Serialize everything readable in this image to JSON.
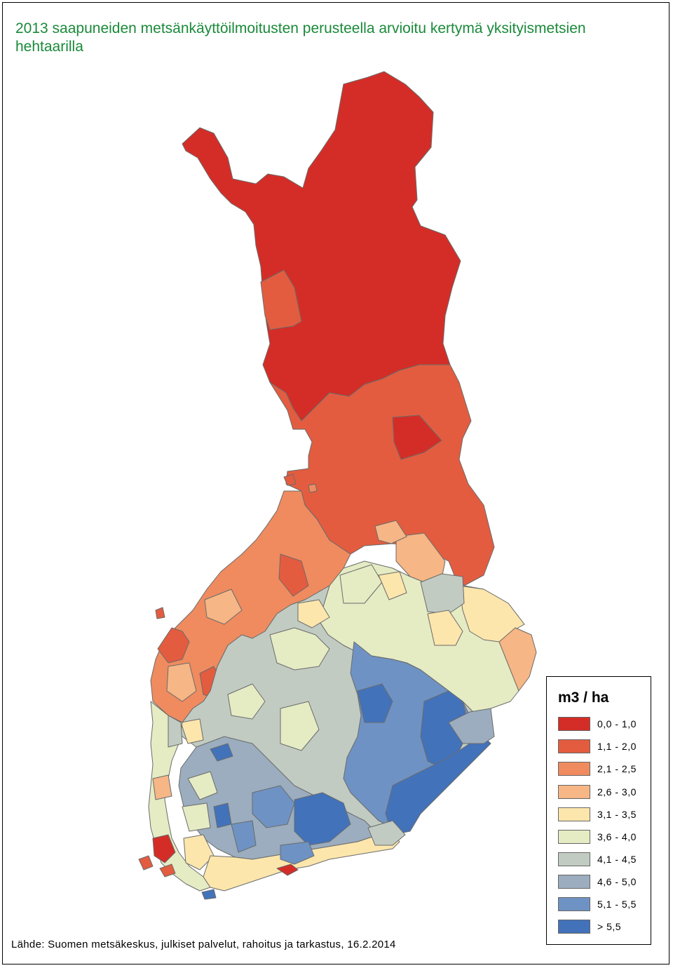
{
  "title": "2013 saapuneiden metsänkäyttöilmoitusten perusteella arvioitu kertymä yksityismetsien hehtaarilla",
  "legend": {
    "title": "m3 / ha",
    "items": [
      {
        "label": "0,0 - 1,0",
        "color": "#d42d27"
      },
      {
        "label": "1,1 - 2,0",
        "color": "#e35c3f"
      },
      {
        "label": "2,1 - 2,5",
        "color": "#ef8b5f"
      },
      {
        "label": "2,6 - 3,0",
        "color": "#f6b685"
      },
      {
        "label": "3,1 - 3,5",
        "color": "#fce6ac"
      },
      {
        "label": "3,6 - 4,0",
        "color": "#e5ebc3"
      },
      {
        "label": "4,1 - 4,5",
        "color": "#c1cbc2"
      },
      {
        "label": "4,6 - 5,0",
        "color": "#9badbe"
      },
      {
        "label": "5,1 - 5,5",
        "color": "#6e92c3"
      },
      {
        "label": "> 5,5",
        "color": "#4272ba"
      }
    ]
  },
  "source": "Lähde: Suomen metsäkeskus, julkiset palvelut, rahoitus ja tarkastus, 16.2.2014"
}
